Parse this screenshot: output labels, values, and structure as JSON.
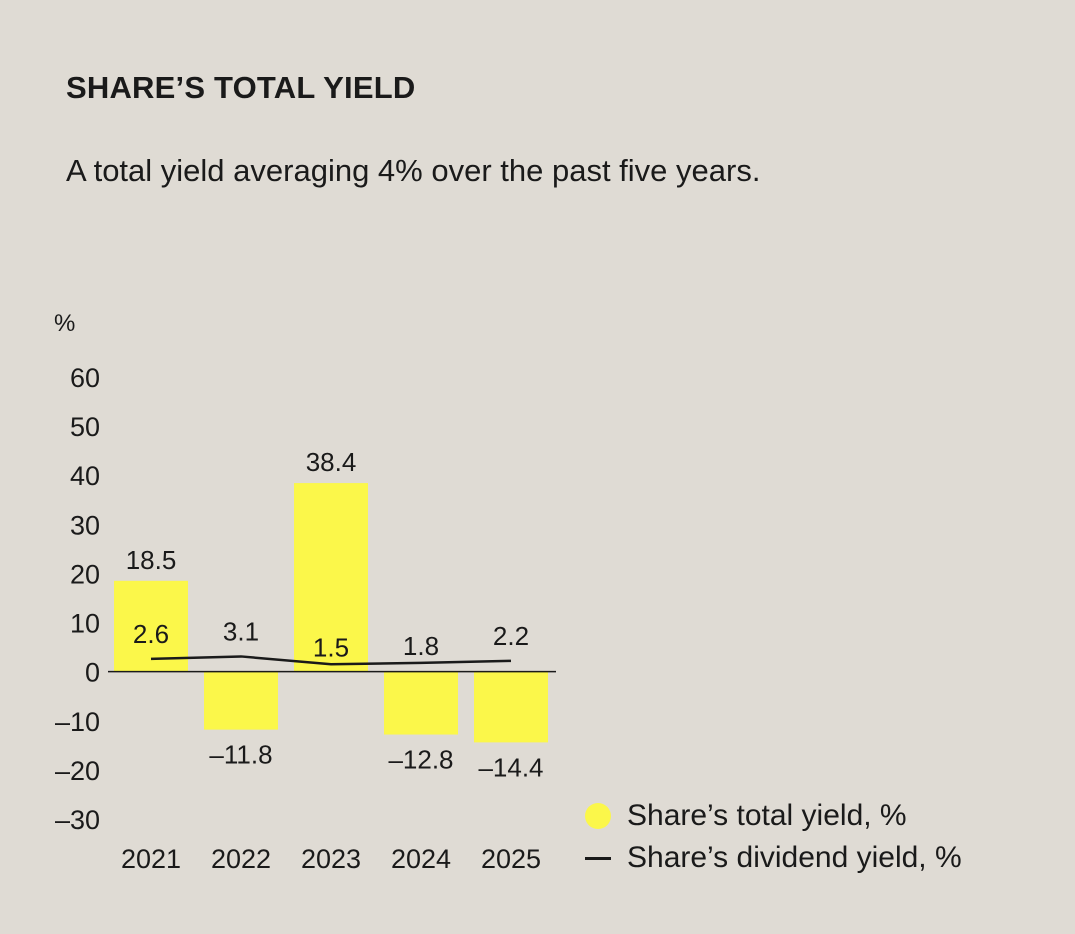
{
  "title": "SHARE’S TOTAL YIELD",
  "subtitle": "A total yield averaging 4% over the past five years.",
  "colors": {
    "background": "#dfdbd4",
    "bar": "#fbf74a",
    "line": "#1a1a1a"
  },
  "legend": {
    "total_yield": "Share’s total yield, %",
    "dividend_yield": "Share’s dividend yield, %"
  },
  "chart_data": {
    "type": "bar",
    "ylabel": "%",
    "ylim": [
      -30,
      60
    ],
    "yticks": [
      "60",
      "50",
      "40",
      "30",
      "20",
      "10",
      "0",
      "–10",
      "–20",
      "–30"
    ],
    "ytick_values": [
      60,
      50,
      40,
      30,
      20,
      10,
      0,
      -10,
      -20,
      -30
    ],
    "categories": [
      "2021",
      "2022",
      "2023",
      "2024",
      "2025"
    ],
    "series": [
      {
        "name": "Share’s total yield, %",
        "type": "bar",
        "values": [
          18.5,
          -11.8,
          38.4,
          -12.8,
          -14.4
        ],
        "labels": [
          "18.5",
          "–11.8",
          "38.4",
          "–12.8",
          "–14.4"
        ]
      },
      {
        "name": "Share’s dividend yield, %",
        "type": "line",
        "values": [
          2.6,
          3.1,
          1.5,
          1.8,
          2.2
        ],
        "labels": [
          "2.6",
          "3.1",
          "1.5",
          "1.8",
          "2.2"
        ]
      }
    ],
    "legend_position": "bottom-right",
    "grid": false
  }
}
